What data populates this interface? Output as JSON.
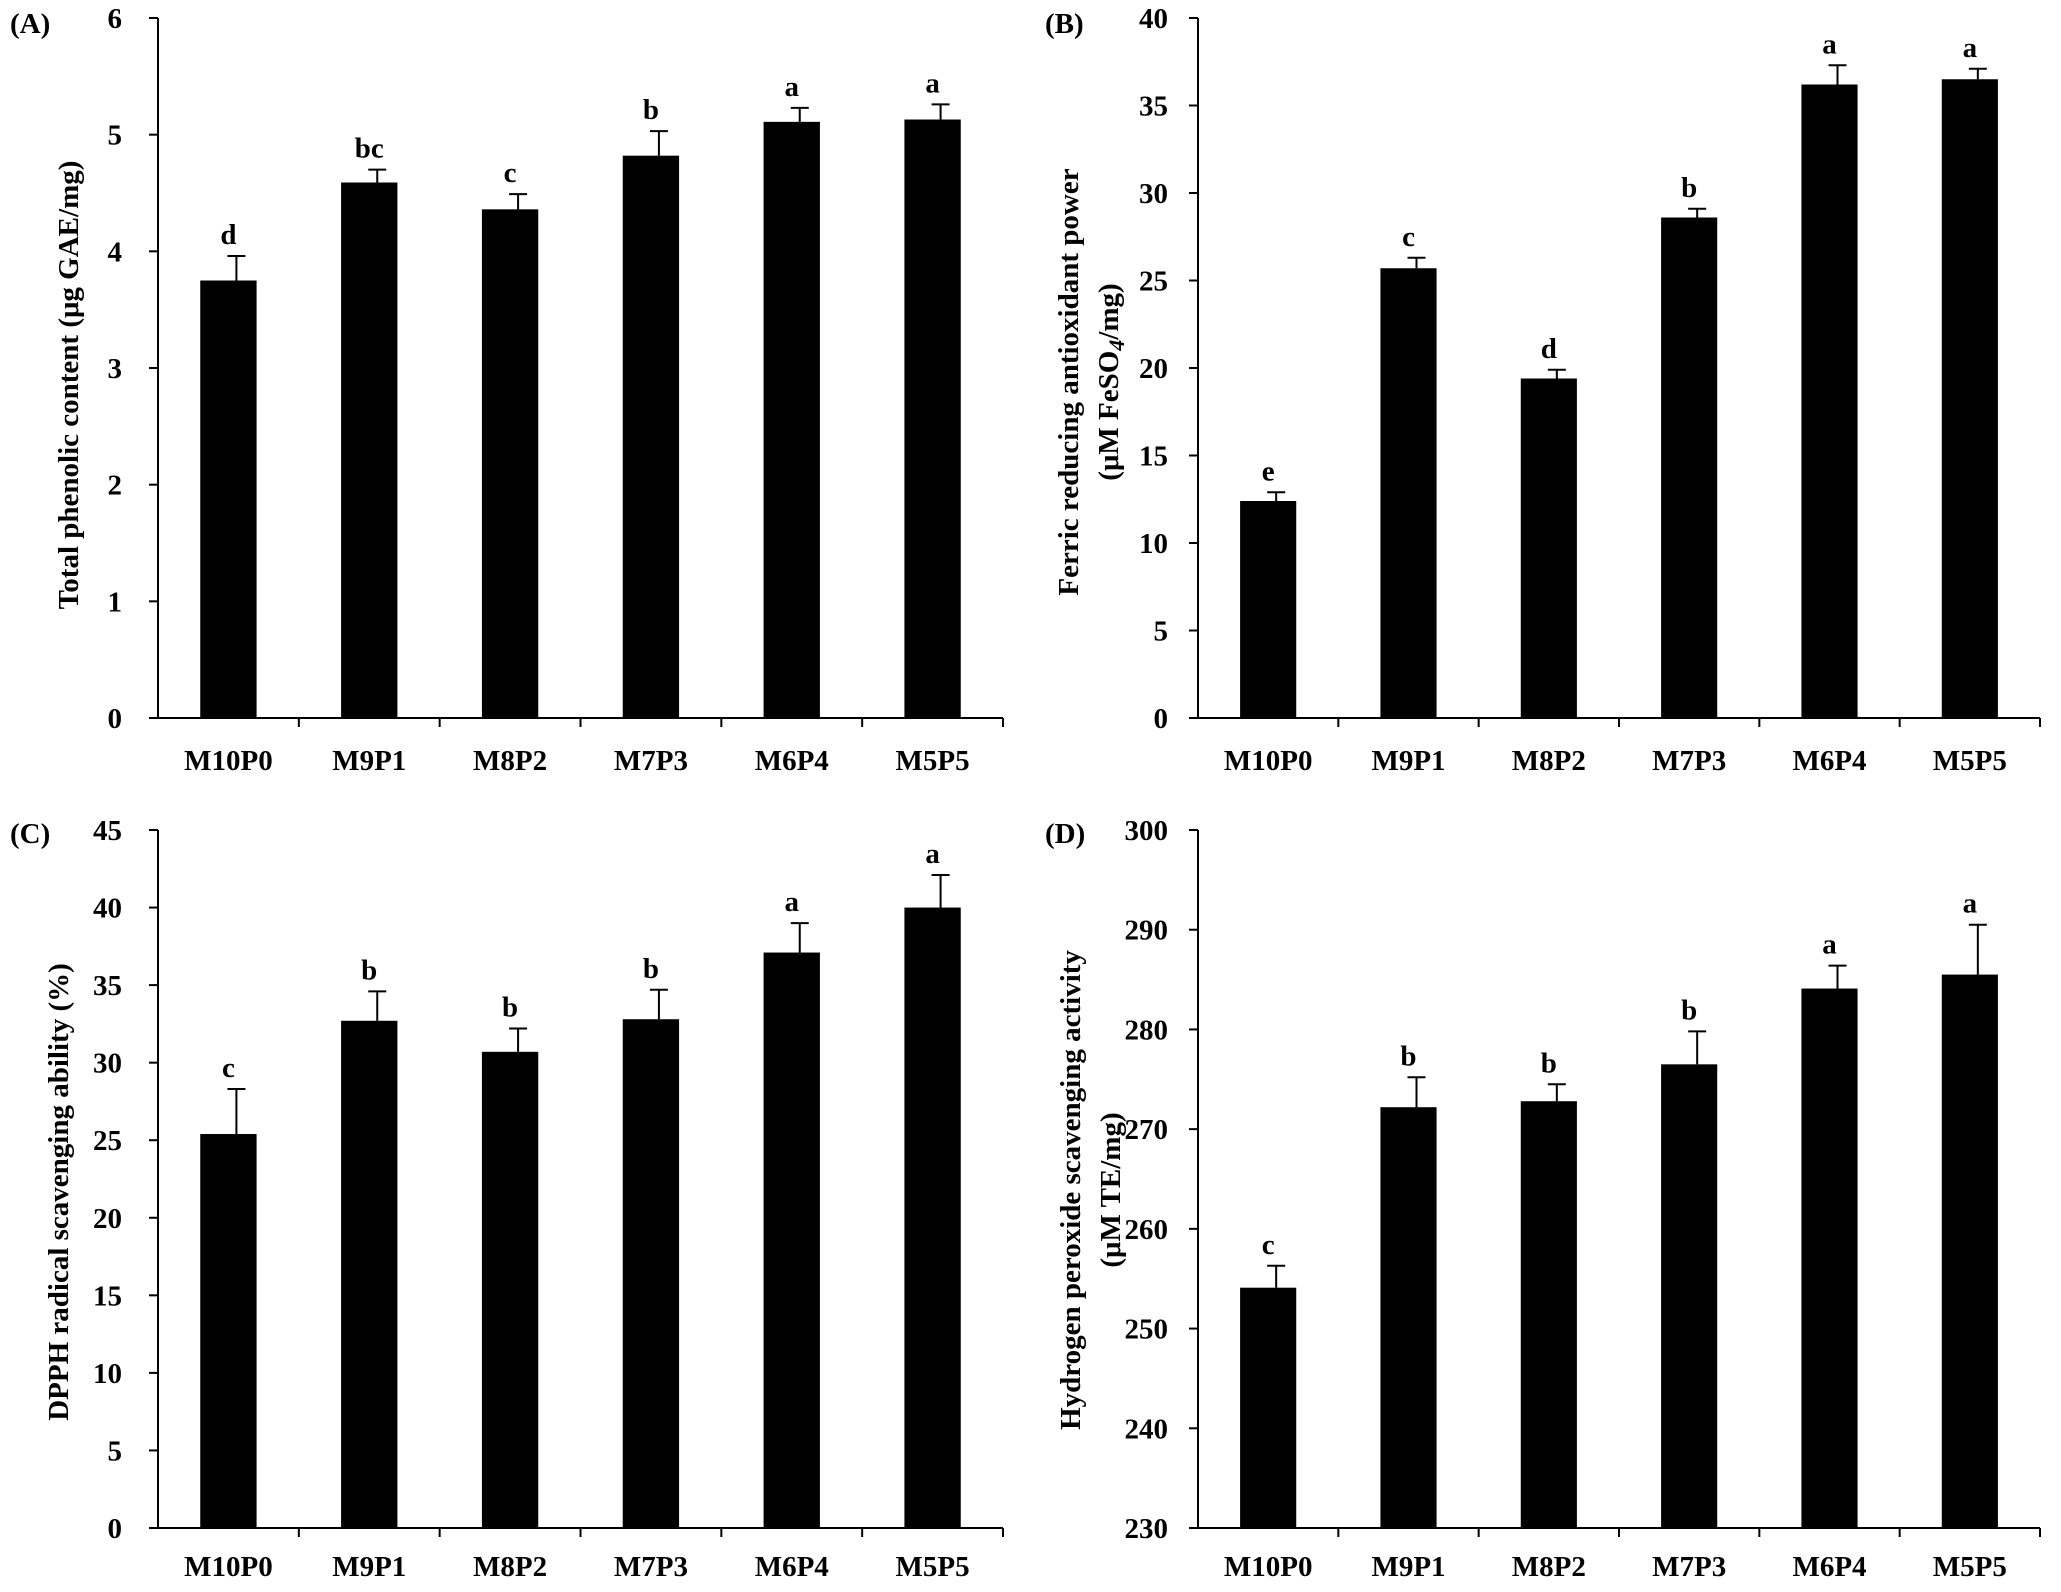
{
  "figure": {
    "colors": {
      "bar": "#000000",
      "axis": "#000000",
      "background": "#ffffff"
    }
  },
  "chart_data": [
    {
      "type": "bar",
      "panel": "(A)",
      "categories": [
        "M10P0",
        "M9P1",
        "M8P2",
        "M7P3",
        "M6P4",
        "M5P5"
      ],
      "values": [
        3.75,
        4.59,
        4.36,
        4.82,
        5.11,
        5.13
      ],
      "errors": [
        0.21,
        0.11,
        0.13,
        0.21,
        0.12,
        0.13
      ],
      "significance": [
        "d",
        "bc",
        "c",
        "b",
        "a",
        "a"
      ],
      "ylabel": "Total phenolic content (μg GAE/mg)",
      "ylim": [
        0,
        6
      ],
      "yticks": [
        "0",
        "1",
        "2",
        "3",
        "4",
        "5",
        "6"
      ]
    },
    {
      "type": "bar",
      "panel": "(B)",
      "categories": [
        "M10P0",
        "M9P1",
        "M8P2",
        "M7P3",
        "M6P4",
        "M5P5"
      ],
      "values": [
        12.4,
        25.7,
        19.4,
        28.6,
        36.2,
        36.5
      ],
      "errors": [
        0.5,
        0.6,
        0.5,
        0.5,
        1.1,
        0.6
      ],
      "significance": [
        "e",
        "c",
        "d",
        "b",
        "a",
        "a"
      ],
      "ylabel": "Ferric reducing antioxidant power",
      "ylabel2_prefix": "(μM FeSO",
      "ylabel2_sub": "4",
      "ylabel2_suffix": "/mg)",
      "ylim": [
        0,
        40
      ],
      "yticks": [
        "0",
        "5",
        "10",
        "15",
        "20",
        "25",
        "30",
        "35",
        "40"
      ]
    },
    {
      "type": "bar",
      "panel": "(C)",
      "categories": [
        "M10P0",
        "M9P1",
        "M8P2",
        "M7P3",
        "M6P4",
        "M5P5"
      ],
      "values": [
        25.4,
        32.7,
        30.7,
        32.8,
        37.1,
        40.0
      ],
      "errors": [
        2.9,
        1.9,
        1.5,
        1.9,
        1.9,
        2.1
      ],
      "significance": [
        "c",
        "b",
        "b",
        "b",
        "a",
        "a"
      ],
      "ylabel": "DPPH radical scavenging ability (%)",
      "ylim": [
        0,
        45
      ],
      "yticks": [
        "0",
        "5",
        "10",
        "15",
        "20",
        "25",
        "30",
        "35",
        "40",
        "45"
      ]
    },
    {
      "type": "bar",
      "panel": "(D)",
      "categories": [
        "M10P0",
        "M9P1",
        "M8P2",
        "M7P3",
        "M6P4",
        "M5P5"
      ],
      "values": [
        254.1,
        272.2,
        272.8,
        276.5,
        284.1,
        285.5
      ],
      "errors": [
        2.2,
        3.0,
        1.7,
        3.3,
        2.3,
        5.0
      ],
      "significance": [
        "c",
        "b",
        "b",
        "b",
        "a",
        "a"
      ],
      "ylabel": "Hydrogen peroxide scavenging activity",
      "ylabel2": "(μM TE/mg)",
      "ylim": [
        230,
        300
      ],
      "yticks": [
        "230",
        "240",
        "250",
        "260",
        "270",
        "280",
        "290",
        "300"
      ]
    }
  ]
}
